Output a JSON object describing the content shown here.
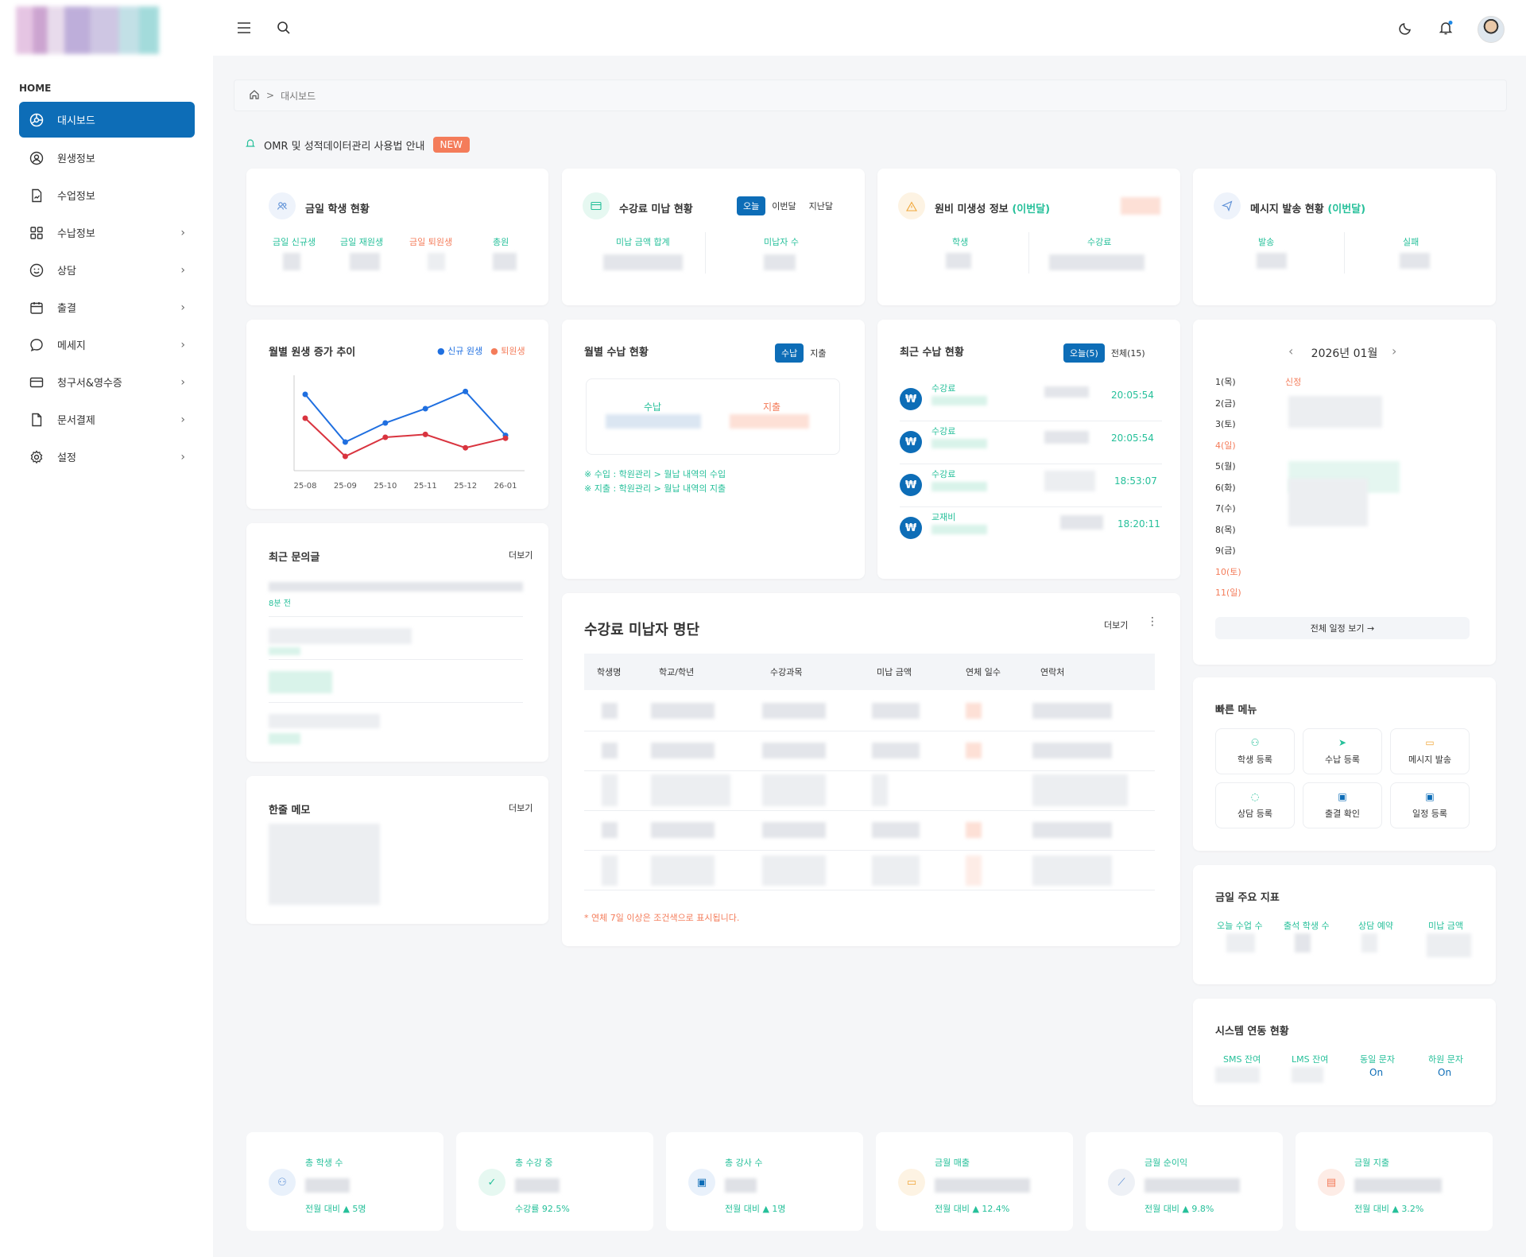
{
  "sidebar": {
    "section_label": "HOME",
    "items": [
      {
        "label": "대시보드",
        "icon": "dashboard-icon"
      },
      {
        "label": "원생정보",
        "icon": "user-circle-icon"
      },
      {
        "label": "수업정보",
        "icon": "document-icon"
      },
      {
        "label": "수납정보",
        "icon": "grid-icon"
      },
      {
        "label": "상담",
        "icon": "smile-icon"
      },
      {
        "label": "출결",
        "icon": "calendar-icon"
      },
      {
        "label": "메세지",
        "icon": "chat-icon"
      },
      {
        "label": "청구서&영수증",
        "icon": "card-icon"
      },
      {
        "label": "문서결제",
        "icon": "file-icon"
      },
      {
        "label": "설정",
        "icon": "gear-icon"
      }
    ]
  },
  "breadcrumb": {
    "separator": ">",
    "current": "대시보드"
  },
  "notice": {
    "text": "OMR 및 성적데이터관리 사용법 안내",
    "badge": "NEW"
  },
  "today_students": {
    "title": "금일 학생 현황",
    "labels": [
      "금일 신규생",
      "금일 재원생",
      "금일 퇴원생",
      "총원"
    ]
  },
  "unpaid_status": {
    "title": "수강료 미납 현황",
    "tabs": [
      "오늘",
      "이번달",
      "지난달"
    ],
    "labels": [
      "미납 금액 합계",
      "미납자 수"
    ]
  },
  "cost_info": {
    "title": "원비 미생성 정보",
    "title_suffix": "(이번달)",
    "labels": [
      "학생",
      "수강료"
    ]
  },
  "message_status": {
    "title": "메시지 발송 현황",
    "title_suffix": "(이번달)",
    "labels": [
      "발송",
      "실패"
    ]
  },
  "monthly_trend": {
    "title": "월별 원생 증가 추이",
    "legend_new": "신규 원생",
    "legend_out": "퇴원생"
  },
  "chart_data": {
    "type": "line",
    "x": [
      "25-08",
      "25-09",
      "25-10",
      "25-11",
      "25-12",
      "26-01"
    ],
    "series": [
      {
        "name": "신규 원생",
        "values": [
          8,
          3,
          5,
          6.5,
          8.3,
          3.7
        ],
        "color": "#1f6fe0"
      },
      {
        "name": "퇴원생",
        "values": [
          5.5,
          1.5,
          3.5,
          3.8,
          2.4,
          3.4
        ],
        "color": "#d9343f"
      }
    ],
    "ylim": [
      0,
      10
    ],
    "grid": false,
    "legend": "top-right"
  },
  "monthly_income": {
    "title": "월별 수납 현황",
    "tabs": [
      "수납",
      "지출"
    ],
    "labels": [
      "수납",
      "지출"
    ],
    "note1": "※ 수입 : 학원관리 > 월납 내역의 수입",
    "note2": "※ 지출 : 학원관리 > 월납 내역의 지출"
  },
  "recent_payments": {
    "title": "최근 수납 현황",
    "tabs": [
      "오늘(5)",
      "전체(15)"
    ],
    "items": [
      {
        "icon": "₩",
        "label": "수강료",
        "time": "20:05:54"
      },
      {
        "icon": "₩",
        "label": "수강료",
        "time": "20:05:54"
      },
      {
        "icon": "₩",
        "label": "수강료",
        "time": "18:53:07"
      },
      {
        "icon": "₩",
        "label": "교재비",
        "time": "18:20:11"
      }
    ]
  },
  "calendar": {
    "month": "2026년 01월",
    "days": [
      {
        "label": "1(목)",
        "color": "#333",
        "tag": "신정"
      },
      {
        "label": "2(금)",
        "color": "#333",
        "tag": ""
      },
      {
        "label": "3(토)",
        "color": "#333",
        "tag": ""
      },
      {
        "label": "4(일)",
        "color": "#f47c5a",
        "tag": ""
      },
      {
        "label": "5(월)",
        "color": "#333",
        "tag": ""
      },
      {
        "label": "6(화)",
        "color": "#333",
        "tag": ""
      },
      {
        "label": "7(수)",
        "color": "#333",
        "tag": ""
      },
      {
        "label": "8(목)",
        "color": "#333",
        "tag": ""
      },
      {
        "label": "9(금)",
        "color": "#333",
        "tag": ""
      },
      {
        "label": "10(토)",
        "color": "#f47c5a",
        "tag": ""
      },
      {
        "label": "11(일)",
        "color": "#f47c5a",
        "tag": ""
      }
    ],
    "view_all": "전체 일정 보기 →"
  },
  "inquiries": {
    "title": "최근 문의글",
    "more": "더보기",
    "first_time": "8분 전"
  },
  "memo": {
    "title": "한줄 메모",
    "more": "더보기"
  },
  "unpaid_list": {
    "title": "수강료 미납자 명단",
    "more": "더보기",
    "columns": [
      "학생명",
      "학교/학년",
      "수강과목",
      "미납 금액",
      "연체 일수",
      "연락처"
    ],
    "footnote": "* 연체 7일 이상은 조건색으로 표시됩니다."
  },
  "quick_menu": {
    "title": "빠른 메뉴",
    "items": [
      {
        "label": "학생 등록",
        "icon": "user-add-icon"
      },
      {
        "label": "수납 등록",
        "icon": "send-icon"
      },
      {
        "label": "메시지 발송",
        "icon": "message-icon"
      },
      {
        "label": "상담 등록",
        "icon": "chat-icon"
      },
      {
        "label": "출결 확인",
        "icon": "calendar-icon"
      },
      {
        "label": "일정 등록",
        "icon": "calendar-icon"
      }
    ]
  },
  "today_kpi": {
    "title": "금일 주요 지표",
    "labels": [
      "오늘 수업 수",
      "출석 학생 수",
      "상담 예약",
      "미납 금액"
    ]
  },
  "system": {
    "title": "시스템 연동 현황",
    "labels": [
      "SMS 잔여",
      "LMS 잔여",
      "동일 문자",
      "하원 문자"
    ],
    "values": [
      "On",
      "On"
    ]
  },
  "kpis": [
    {
      "label": "총 학생 수",
      "change": "전월 대비 ▲ 5명",
      "color": "#e9f1fb"
    },
    {
      "label": "총 수강 중",
      "change": "수강률 92.5%",
      "color": "#e6f8f1"
    },
    {
      "label": "총 강사 수",
      "change": "전월 대비 ▲ 1명",
      "color": "#e9f1fb"
    },
    {
      "label": "금월 매출",
      "change": "전월 대비 ▲ 12.4%",
      "color": "#fdf3e3"
    },
    {
      "label": "금월 순이익",
      "change": "전월 대비 ▲ 9.8%",
      "color": "#eef1f6"
    },
    {
      "label": "금월 지출",
      "change": "전월 대비 ▲ 3.2%",
      "color": "#fdece6"
    }
  ],
  "colors": {
    "primary": "#0d6db7",
    "accent": "#26c09a",
    "warn": "#f47c5a"
  }
}
